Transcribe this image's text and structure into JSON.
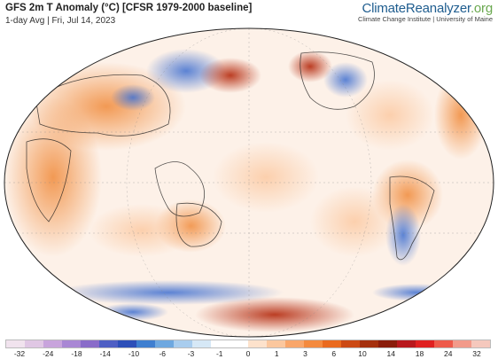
{
  "header": {
    "title": "GFS 2m T Anomaly (°C) [CFSR 1979-2000 baseline]",
    "subtitle": "1-day Avg | Fri, Jul 14, 2023"
  },
  "brand": {
    "name_main": "ClimateReanalyzer",
    "name_tld": ".org",
    "affiliation": "Climate Change Institute | University of Maine"
  },
  "legend": {
    "tick_labels": [
      "-32",
      "-24",
      "-18",
      "-14",
      "-10",
      "-6",
      "-3",
      "-1",
      "0",
      "1",
      "3",
      "6",
      "10",
      "14",
      "18",
      "24",
      "32"
    ],
    "colors": [
      "#f1e3ee",
      "#e0c7e4",
      "#c8a4dc",
      "#a987d4",
      "#8a6cc9",
      "#4f5fc4",
      "#2d4fb8",
      "#3f7fd0",
      "#6ea8e0",
      "#a9cdee",
      "#d6e8f6",
      "#ffffff",
      "#ffffff",
      "#fde2cc",
      "#fbc79e",
      "#f9a66a",
      "#f48a3e",
      "#ea6a1e",
      "#cc4a14",
      "#a5300d",
      "#8a1c0a",
      "#b8181c",
      "#e02020",
      "#ee5a4a",
      "#f29a8a",
      "#f5c8bd"
    ]
  }
}
